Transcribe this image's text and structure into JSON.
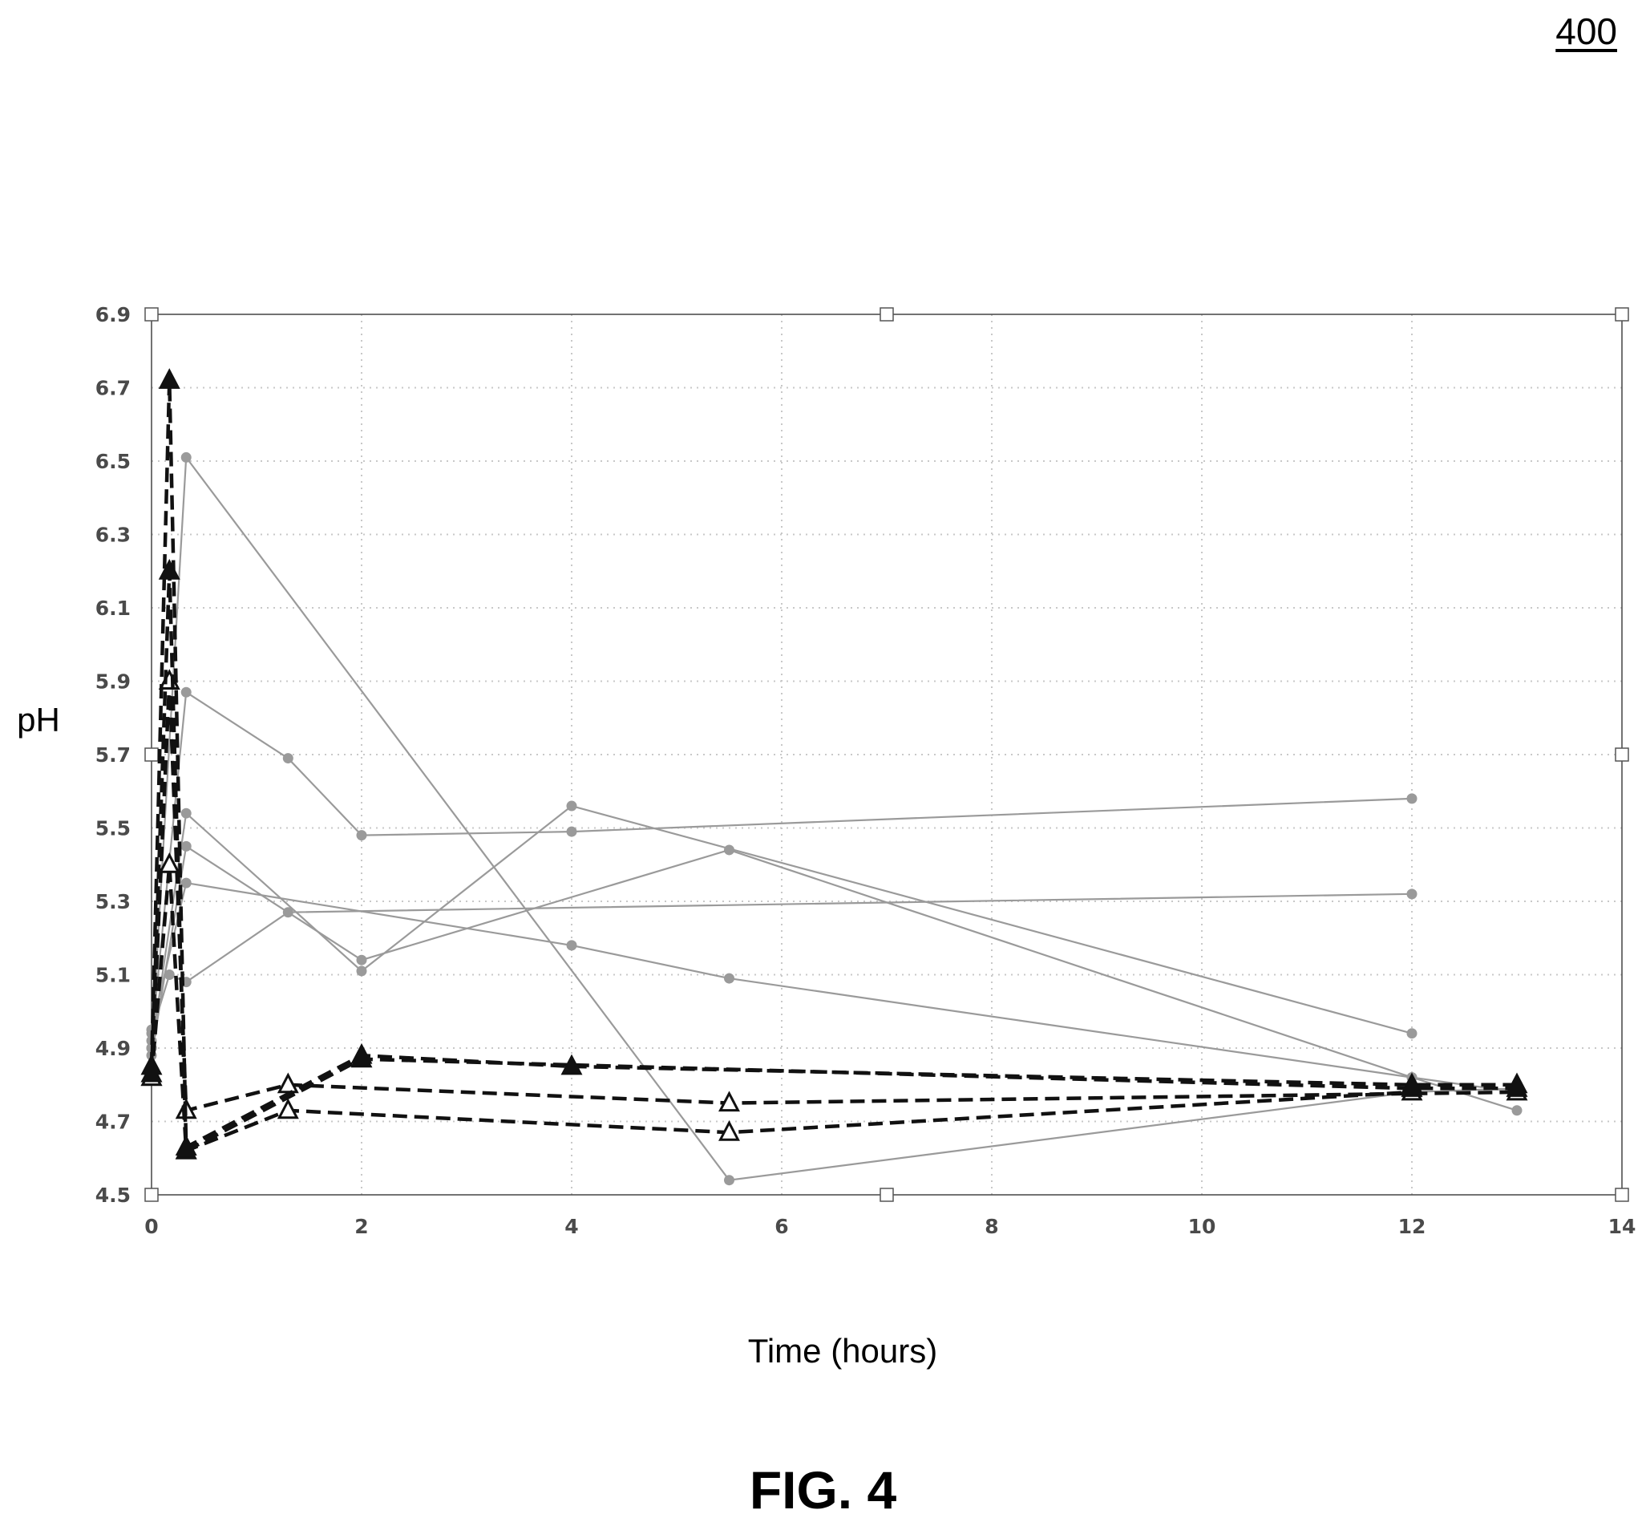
{
  "figure": {
    "reference_number": "400",
    "caption": "FIG. 4"
  },
  "chart_data": {
    "type": "line",
    "title": "",
    "xlabel": "Time (hours)",
    "ylabel": "pH",
    "xlim": [
      0,
      14
    ],
    "ylim": [
      4.5,
      6.9
    ],
    "x_ticks": [
      "0",
      "2",
      "4",
      "6",
      "8",
      "10",
      "12",
      "14"
    ],
    "y_ticks": [
      "4.5",
      "4.7",
      "4.9",
      "5.1",
      "5.3",
      "5.5",
      "5.7",
      "5.9",
      "6.1",
      "6.3",
      "6.5",
      "6.7",
      "6.9"
    ],
    "grid": "dotted",
    "legend": "none",
    "series": [
      {
        "style": "solid-circle",
        "points": [
          [
            0,
            4.9
          ],
          [
            0.33,
            6.51
          ],
          [
            5.5,
            4.54
          ],
          [
            12,
            4.78
          ],
          [
            13,
            4.79
          ]
        ]
      },
      {
        "style": "solid-circle",
        "points": [
          [
            0,
            4.92
          ],
          [
            0.33,
            5.87
          ],
          [
            1.3,
            5.69
          ],
          [
            2,
            5.48
          ],
          [
            4,
            5.49
          ],
          [
            12,
            5.58
          ]
        ]
      },
      {
        "style": "solid-circle",
        "points": [
          [
            0,
            4.9
          ],
          [
            0.33,
            5.54
          ],
          [
            2,
            5.11
          ],
          [
            4,
            5.56
          ],
          [
            12,
            4.94
          ]
        ]
      },
      {
        "style": "solid-circle",
        "points": [
          [
            0,
            4.88
          ],
          [
            0.33,
            5.45
          ],
          [
            2,
            5.14
          ],
          [
            5.5,
            5.44
          ],
          [
            12,
            4.82
          ],
          [
            13,
            4.78
          ]
        ]
      },
      {
        "style": "solid-circle",
        "points": [
          [
            0,
            4.95
          ],
          [
            0.33,
            5.35
          ],
          [
            4,
            5.18
          ],
          [
            5.5,
            5.09
          ],
          [
            12,
            4.82
          ],
          [
            13,
            4.73
          ]
        ]
      },
      {
        "style": "solid-circle",
        "points": [
          [
            0,
            4.94
          ],
          [
            0.17,
            5.1
          ],
          [
            0.33,
            5.08
          ],
          [
            1.3,
            5.27
          ],
          [
            12,
            5.32
          ]
        ]
      },
      {
        "style": "dashed-open-triangle",
        "points": [
          [
            0,
            4.82
          ],
          [
            0.17,
            5.9
          ],
          [
            0.33,
            4.73
          ],
          [
            1.3,
            4.8
          ],
          [
            5.5,
            4.75
          ],
          [
            13,
            4.78
          ]
        ]
      },
      {
        "style": "dashed-open-triangle",
        "points": [
          [
            0,
            4.82
          ],
          [
            0.17,
            5.4
          ],
          [
            0.33,
            4.62
          ],
          [
            1.3,
            4.73
          ],
          [
            5.5,
            4.67
          ],
          [
            12,
            4.78
          ]
        ]
      },
      {
        "style": "dashed-filled-triangle",
        "points": [
          [
            0,
            4.85
          ],
          [
            0.17,
            6.72
          ],
          [
            0.33,
            4.63
          ],
          [
            2,
            4.88
          ],
          [
            4,
            4.85
          ],
          [
            12,
            4.8
          ],
          [
            13,
            4.8
          ]
        ]
      },
      {
        "style": "dashed-filled-triangle",
        "points": [
          [
            0,
            4.83
          ],
          [
            0.17,
            6.2
          ],
          [
            0.33,
            4.62
          ],
          [
            2,
            4.87
          ],
          [
            12,
            4.79
          ],
          [
            13,
            4.79
          ]
        ]
      }
    ]
  }
}
